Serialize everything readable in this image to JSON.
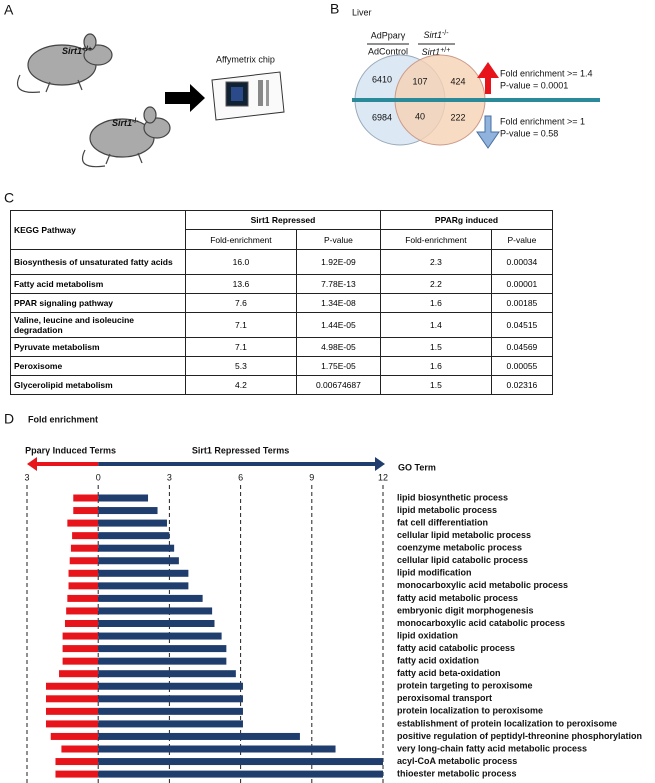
{
  "panel_a": {
    "label": "A",
    "genotypes": [
      {
        "gene": "Sirt1",
        "superscript": "+/+"
      },
      {
        "gene": "Sirt1",
        "superscript": "-/-"
      }
    ],
    "chip": "Affymetrix chip"
  },
  "panel_b": {
    "label": "B",
    "tissue": "Liver",
    "comparison_1": {
      "numerator": "AdPparγ",
      "denominator": "AdControl"
    },
    "comparison_2": {
      "numerator": {
        "gene": "Sirt1",
        "superscript": "-/-"
      },
      "denominator": {
        "gene": "Sirt1",
        "superscript": "+/+"
      }
    },
    "venn_top": {
      "left": "6410",
      "overlap": "107",
      "right": "424"
    },
    "venn_bottom": {
      "left": "6984",
      "overlap": "40",
      "right": "222"
    },
    "up": {
      "criterion": "Fold enrichment >= 1.4",
      "pvalue": "P-value = 0.0001"
    },
    "down": {
      "criterion": "Fold enrichment >= 1",
      "pvalue": "P-value = 0.58"
    }
  },
  "panel_c": {
    "label": "C",
    "table": {
      "header": {
        "pathway": "KEGG Pathway",
        "groups": [
          "Sirt1 Repressed",
          "PPARg induced"
        ],
        "subheaders": [
          "Fold-enrichment",
          "P-value",
          "Fold-enrichment",
          "P-value"
        ]
      },
      "rows": [
        [
          "Biosynthesis of unsaturated fatty acids",
          "16.0",
          "1.92E-09",
          "2.3",
          "0.00034"
        ],
        [
          "Fatty acid metabolism",
          "13.6",
          "7.78E-13",
          "2.2",
          "0.00001"
        ],
        [
          "PPAR signaling pathway",
          "7.6",
          "1.34E-08",
          "1.6",
          "0.00185"
        ],
        [
          "Valine, leucine and isoleucine degradation",
          "7.1",
          "1.44E-05",
          "1.4",
          "0.04515"
        ],
        [
          "Pyruvate metabolism",
          "7.1",
          "4.98E-05",
          "1.5",
          "0.04569"
        ],
        [
          "Peroxisome",
          "5.3",
          "1.75E-05",
          "1.6",
          "0.00055"
        ],
        [
          "Glycerolipid metabolism",
          "4.2",
          "0.00674687",
          "1.5",
          "0.02316"
        ]
      ]
    }
  },
  "chart_data": {
    "type": "bar",
    "panel_label": "D",
    "title": "Fold enrichment",
    "category_axis_label": "GO Term",
    "categories": [
      "lipid biosynthetic process",
      "lipid metabolic process",
      "fat cell differentiation",
      "cellular lipid metabolic process",
      "coenzyme metabolic process",
      "cellular lipid catabolic process",
      "lipid modification",
      "monocarboxylic acid metabolic process",
      "fatty acid metabolic process",
      "embryonic digit morphogenesis",
      "monocarboxylic acid catabolic process",
      "lipid oxidation",
      "fatty acid catabolic process",
      "fatty acid oxidation",
      "fatty acid beta-oxidation",
      "protein targeting to peroxisome",
      "peroxisomal transport",
      "protein localization to peroxisome",
      "establishment of protein localization to peroxisome",
      "positive regulation of peptidyl-threonine phosphorylation",
      "very long-chain fatty acid metabolic process",
      "acyl-CoA metabolic process",
      "thioester metabolic process"
    ],
    "series": [
      {
        "name": "Pparγ Induced Terms",
        "color": "#e8141b",
        "direction": "left",
        "values": [
          1.05,
          1.05,
          1.3,
          1.1,
          1.15,
          1.2,
          1.25,
          1.25,
          1.3,
          1.35,
          1.4,
          1.5,
          1.5,
          1.5,
          1.65,
          2.2,
          2.2,
          2.2,
          2.2,
          2.0,
          1.55,
          1.8,
          1.8
        ]
      },
      {
        "name": "Sirt1 Repressed Terms",
        "color": "#1f3e6e",
        "direction": "right",
        "values": [
          2.1,
          2.5,
          2.9,
          3.0,
          3.2,
          3.4,
          3.8,
          3.8,
          4.4,
          4.8,
          4.9,
          5.2,
          5.4,
          5.4,
          5.8,
          6.1,
          6.1,
          6.1,
          6.1,
          8.5,
          10.0,
          12.0,
          12.0
        ]
      }
    ],
    "xlim": [
      -3,
      12
    ],
    "xticks": [
      {
        "value": -3,
        "label": "3"
      },
      0,
      3,
      6,
      9,
      12
    ],
    "grid": true
  }
}
